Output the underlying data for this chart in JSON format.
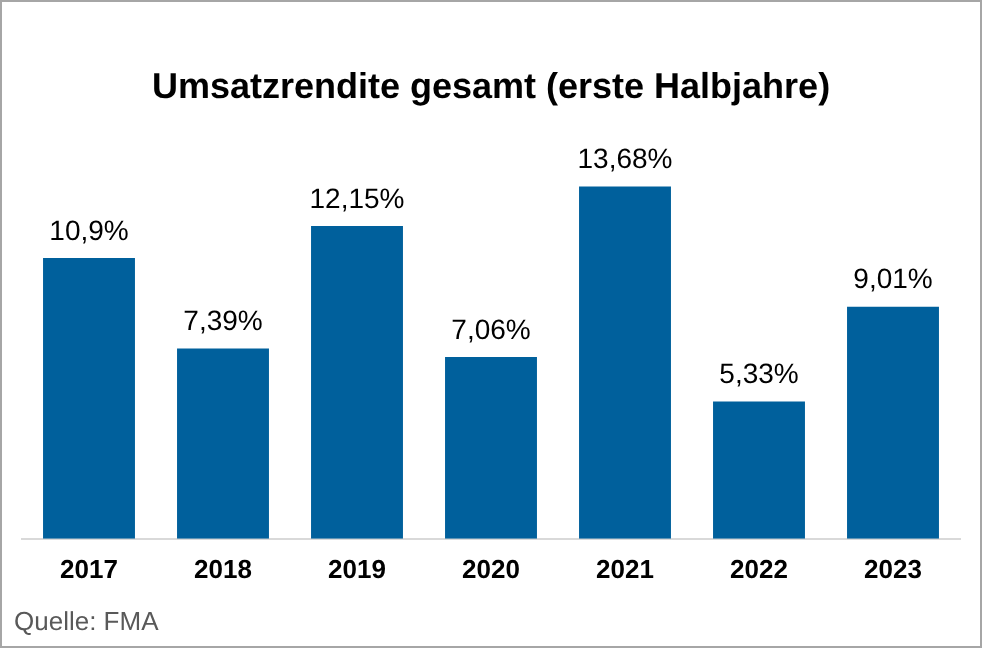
{
  "chart_data": {
    "type": "bar",
    "title": "Umsatzrendite gesamt (erste Halbjahre)",
    "categories": [
      "2017",
      "2018",
      "2019",
      "2020",
      "2021",
      "2022",
      "2023"
    ],
    "values": [
      10.9,
      7.39,
      12.15,
      7.06,
      13.68,
      5.33,
      9.01
    ],
    "value_labels": [
      "10,9%",
      "7,39%",
      "12,15%",
      "7,06%",
      "13,68%",
      "5,33%",
      "9,01%"
    ],
    "color": "#00609c",
    "grid": false,
    "legend": false,
    "annotations": [
      "Quelle: FMA"
    ]
  }
}
